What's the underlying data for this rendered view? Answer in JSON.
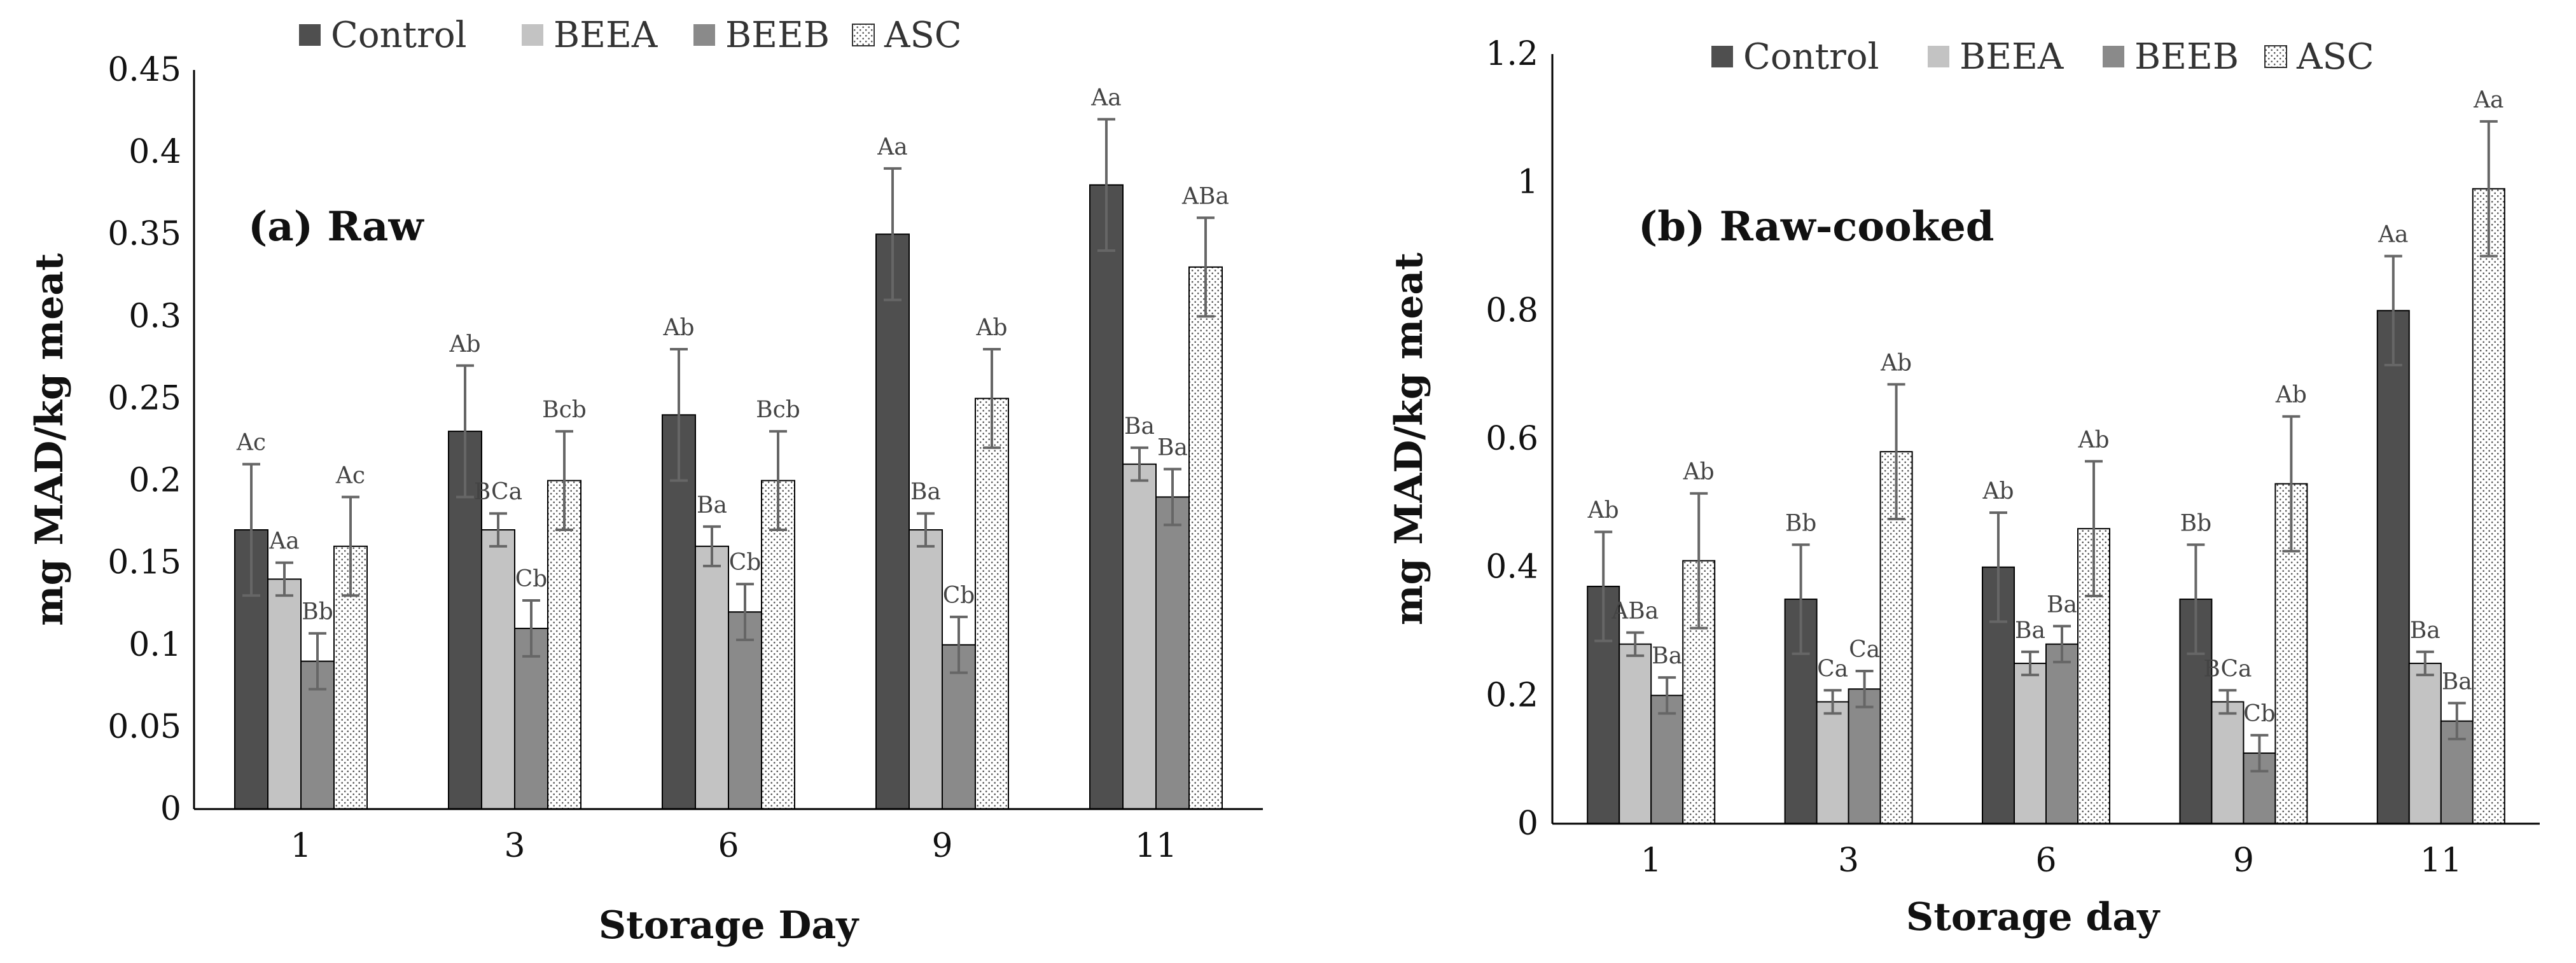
{
  "colors": {
    "Control": "#4f4f4f",
    "BEEA": "#c3c3c3",
    "BEEB": "#8a8a8a",
    "ASC": "#ffffff",
    "axis": "#000000",
    "error_bar": "#666666"
  },
  "chart_data": [
    {
      "type": "bar",
      "title": "(a) Raw",
      "xlabel": "Storage Day",
      "ylabel": "mg MAD/kg meat",
      "ylim": [
        0,
        0.45
      ],
      "yticks": [
        "0",
        "0.05",
        "0.1",
        "0.15",
        "0.2",
        "0.25",
        "0.3",
        "0.35",
        "0.4",
        "0.45"
      ],
      "ytick_values": [
        0,
        0.05,
        0.1,
        0.15,
        0.2,
        0.25,
        0.3,
        0.35,
        0.4,
        0.45
      ],
      "legend": [
        "Control",
        "BEEA",
        "BEEB",
        "ASC"
      ],
      "legend_position": "top",
      "categories": [
        "1",
        "3",
        "6",
        "9",
        "11"
      ],
      "series": [
        {
          "name": "Control",
          "values": [
            0.17,
            0.23,
            0.24,
            0.35,
            0.38
          ],
          "errors": [
            0.04,
            0.04,
            0.04,
            0.04,
            0.04
          ],
          "letters": [
            "Ac",
            "Ab",
            "Ab",
            "Aa",
            "Aa"
          ]
        },
        {
          "name": "BEEA",
          "values": [
            0.14,
            0.17,
            0.16,
            0.17,
            0.21
          ],
          "errors": [
            0.01,
            0.01,
            0.012,
            0.01,
            0.01
          ],
          "letters": [
            "Aa",
            "BCa",
            "Ba",
            "Ba",
            "Ba"
          ]
        },
        {
          "name": "BEEB",
          "values": [
            0.09,
            0.11,
            0.12,
            0.1,
            0.19
          ],
          "errors": [
            0.017,
            0.017,
            0.017,
            0.017,
            0.017
          ],
          "letters": [
            "Bb",
            "Cb",
            "Cb",
            "Cb",
            "Ba"
          ]
        },
        {
          "name": "ASC",
          "values": [
            0.16,
            0.2,
            0.2,
            0.25,
            0.33
          ],
          "errors": [
            0.03,
            0.03,
            0.03,
            0.03,
            0.03
          ],
          "letters": [
            "Ac",
            "Bcb",
            "Bcb",
            "Ab",
            "ABa"
          ]
        }
      ]
    },
    {
      "type": "bar",
      "title": "(b) Raw-cooked",
      "xlabel": "Storage day",
      "ylabel": "mg MAD/kg meat",
      "ylim": [
        0,
        1.2
      ],
      "yticks": [
        "0",
        "0.2",
        "0.4",
        "0.6",
        "0.8",
        "1",
        "1.2"
      ],
      "ytick_values": [
        0,
        0.2,
        0.4,
        0.6,
        0.8,
        1.0,
        1.2
      ],
      "legend": [
        "Control",
        "BEEA",
        "BEEB",
        "ASC"
      ],
      "legend_position": "top",
      "categories": [
        "1",
        "3",
        "6",
        "9",
        "11"
      ],
      "series": [
        {
          "name": "Control",
          "values": [
            0.37,
            0.35,
            0.4,
            0.35,
            0.8
          ],
          "errors": [
            0.085,
            0.085,
            0.085,
            0.085,
            0.085
          ],
          "letters": [
            "Ab",
            "Bb",
            "Ab",
            "Bb",
            "Aa"
          ]
        },
        {
          "name": "BEEA",
          "values": [
            0.28,
            0.19,
            0.25,
            0.19,
            0.25
          ],
          "errors": [
            0.018,
            0.018,
            0.018,
            0.018,
            0.018
          ],
          "letters": [
            "ABa",
            "Ca",
            "Ba",
            "BCa",
            "Ba"
          ]
        },
        {
          "name": "BEEB",
          "values": [
            0.2,
            0.21,
            0.28,
            0.11,
            0.16
          ],
          "errors": [
            0.028,
            0.028,
            0.028,
            0.028,
            0.028
          ],
          "letters": [
            "Ba",
            "Ca",
            "Ba",
            "Cb",
            "Ba"
          ]
        },
        {
          "name": "ASC",
          "values": [
            0.41,
            0.58,
            0.46,
            0.53,
            0.99
          ],
          "errors": [
            0.105,
            0.105,
            0.105,
            0.105,
            0.105
          ],
          "letters": [
            "Ab",
            "Ab",
            "Ab",
            "Ab",
            "Aa"
          ]
        }
      ]
    }
  ]
}
